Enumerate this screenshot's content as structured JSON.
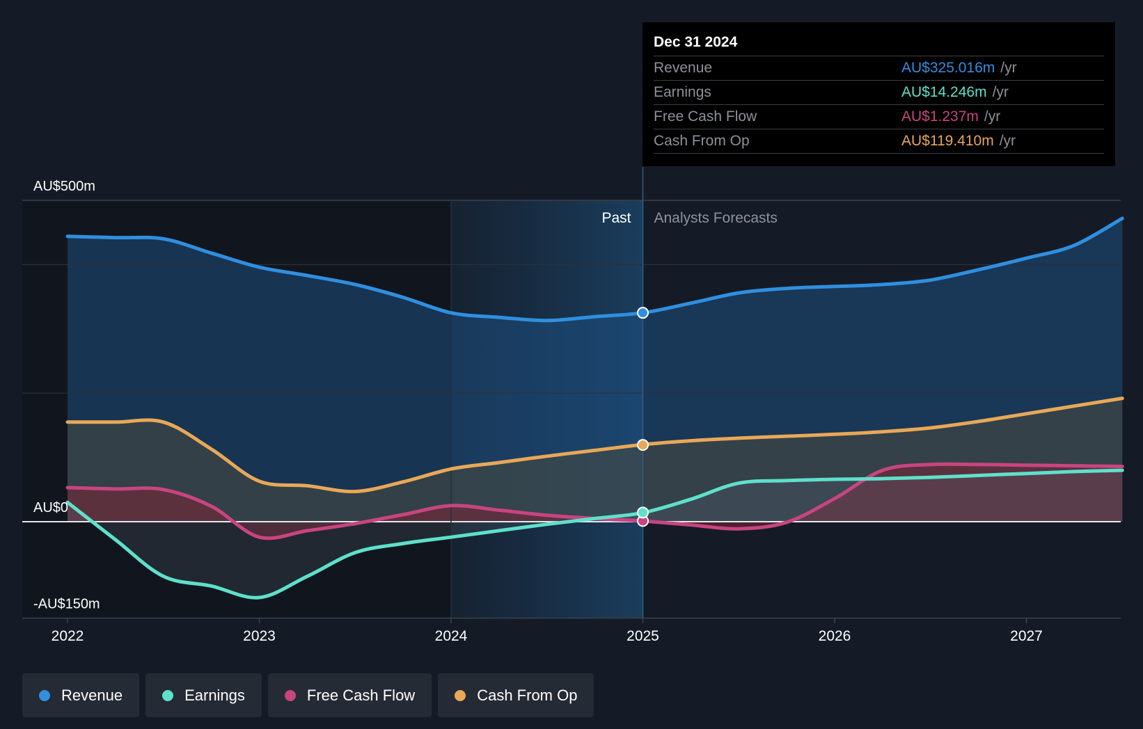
{
  "chart_data": {
    "type": "line",
    "title": "",
    "x": [
      2022.0,
      2022.25,
      2022.5,
      2022.75,
      2023.0,
      2023.25,
      2023.5,
      2023.75,
      2024.0,
      2024.25,
      2024.5,
      2024.75,
      2025.0,
      2025.25,
      2025.5,
      2025.75,
      2026.0,
      2026.25,
      2026.5,
      2026.75,
      2027.0,
      2027.25,
      2027.5
    ],
    "y_ticks": [
      {
        "value": 500,
        "label": "AU$500m"
      },
      {
        "value": 0,
        "label": "AU$0"
      },
      {
        "value": -150,
        "label": "-AU$150m"
      }
    ],
    "ylim": [
      -150,
      500
    ],
    "xlim": [
      2021.77,
      2027.5
    ],
    "x_ticks": [
      {
        "value": 2022,
        "label": "2022"
      },
      {
        "value": 2023,
        "label": "2023"
      },
      {
        "value": 2024,
        "label": "2024"
      },
      {
        "value": 2025,
        "label": "2025"
      },
      {
        "value": 2026,
        "label": "2026"
      },
      {
        "value": 2027,
        "label": "2027"
      }
    ],
    "divider_x": 2025.0,
    "past_shade_start": 2024.0,
    "past_label": "Past",
    "forecast_label": "Analysts Forecasts",
    "series": [
      {
        "name": "Revenue",
        "color": "#2f8fe0",
        "values": [
          444,
          442,
          440,
          418,
          396,
          383,
          369,
          349,
          325,
          318,
          313,
          319,
          325,
          340,
          356,
          363,
          366,
          369,
          376,
          392,
          410,
          430,
          472
        ]
      },
      {
        "name": "Cash From Op",
        "color": "#e8a857",
        "values": [
          155,
          155,
          155,
          113,
          63,
          56,
          47,
          62,
          82,
          92,
          102,
          111,
          120,
          126,
          130,
          133,
          136,
          140,
          146,
          156,
          168,
          180,
          192
        ]
      },
      {
        "name": "Free Cash Flow",
        "color": "#c8457f",
        "values": [
          53,
          51,
          50,
          24,
          -24,
          -14,
          -3,
          11,
          25,
          18,
          10,
          5,
          1,
          -5,
          -11,
          -1,
          36,
          80,
          89,
          89,
          88,
          87,
          86
        ]
      },
      {
        "name": "Earnings",
        "color": "#5ee0cb",
        "values": [
          30,
          -28,
          -85,
          -100,
          -118,
          -85,
          -48,
          -34,
          -24,
          -14,
          -4,
          5,
          14,
          35,
          60,
          64,
          66,
          67,
          69,
          72,
          75,
          78,
          80
        ]
      }
    ],
    "highlight_x": 2025.0,
    "highlight_values": {
      "Revenue": 325.016,
      "Earnings": 14.246,
      "Free Cash Flow": 1.237,
      "Cash From Op": 119.41
    }
  },
  "tooltip": {
    "date": "Dec 31 2024",
    "unit": "/yr",
    "rows": [
      {
        "label": "Revenue",
        "value": "AU$325.016m",
        "color": "#2f8fe0"
      },
      {
        "label": "Earnings",
        "value": "AU$14.246m",
        "color": "#5ee0cb"
      },
      {
        "label": "Free Cash Flow",
        "value": "AU$1.237m",
        "color": "#c8457f"
      },
      {
        "label": "Cash From Op",
        "value": "AU$119.410m",
        "color": "#e8a857"
      }
    ]
  },
  "legend": [
    {
      "label": "Revenue",
      "color": "#2f8fe0"
    },
    {
      "label": "Earnings",
      "color": "#5ee0cb"
    },
    {
      "label": "Free Cash Flow",
      "color": "#c8457f"
    },
    {
      "label": "Cash From Op",
      "color": "#e8a857"
    }
  ]
}
